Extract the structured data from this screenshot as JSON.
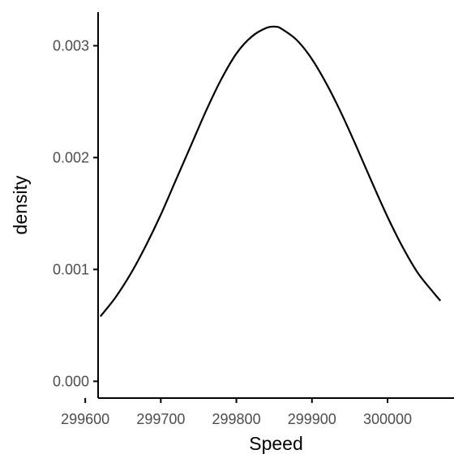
{
  "chart_data": {
    "type": "line",
    "xlabel": "Speed",
    "ylabel": "density",
    "xlim": [
      299617,
      300088
    ],
    "ylim": [
      -0.00015,
      0.0033
    ],
    "x_ticks": [
      299600,
      299700,
      299800,
      299900,
      300000
    ],
    "x_tick_labels": [
      "299600",
      "299700",
      "299800",
      "299900",
      "300000"
    ],
    "y_ticks": [
      0,
      0.001,
      0.002,
      0.003
    ],
    "y_tick_labels": [
      "0.000",
      "0.001",
      "0.002",
      "0.003"
    ],
    "grid": false,
    "legend": "none",
    "series": [
      {
        "x": [
          299620,
          299640,
          299660,
          299680,
          299700,
          299720,
          299740,
          299760,
          299780,
          299800,
          299820,
          299840,
          299852,
          299860,
          299880,
          299900,
          299920,
          299940,
          299960,
          299980,
          300000,
          300020,
          300040,
          300060,
          300070
        ],
        "y": [
          0.00058,
          0.00075,
          0.00096,
          0.00121,
          0.00149,
          0.0018,
          0.00211,
          0.00242,
          0.0027,
          0.00293,
          0.00308,
          0.00316,
          0.00317,
          0.00315,
          0.00305,
          0.00288,
          0.00265,
          0.00238,
          0.00208,
          0.00177,
          0.00147,
          0.0012,
          0.00097,
          0.0008,
          0.00072
        ]
      }
    ],
    "colors": {
      "line": "#000000",
      "axis": "#000000",
      "tick_label": "#4d4d4d"
    }
  }
}
